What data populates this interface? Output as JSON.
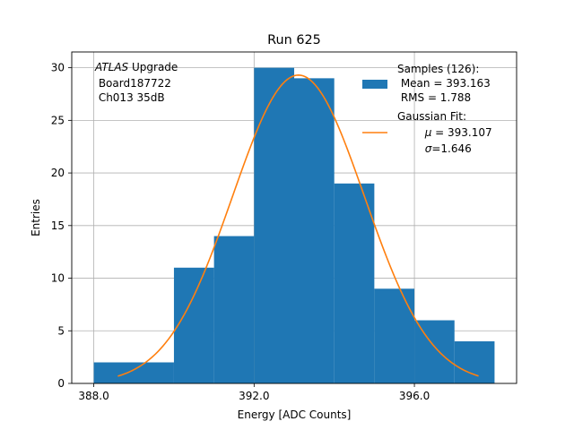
{
  "chart_data": {
    "type": "bar",
    "title": "Run 625",
    "xlabel": "Energy [ADC Counts]",
    "ylabel": "Entries",
    "xlim": [
      387.45,
      398.55
    ],
    "ylim": [
      0,
      31.5
    ],
    "xticks": [
      388,
      392,
      396
    ],
    "xtick_labels": [
      "388.0",
      "392.0",
      "396.0"
    ],
    "yticks": [
      0,
      5,
      10,
      15,
      20,
      25,
      30
    ],
    "ytick_labels": [
      "0",
      "5",
      "10",
      "15",
      "20",
      "25",
      "30"
    ],
    "grid": true,
    "bar_color": "#1f77b4",
    "fit_color": "#ff7f0e",
    "bins": [
      {
        "x0": 388,
        "x1": 390,
        "value": 2
      },
      {
        "x0": 390,
        "x1": 391,
        "value": 11
      },
      {
        "x0": 391,
        "x1": 392,
        "value": 14
      },
      {
        "x0": 392,
        "x1": 393,
        "value": 30
      },
      {
        "x0": 393,
        "x1": 394,
        "value": 29
      },
      {
        "x0": 394,
        "x1": 395,
        "value": 19
      },
      {
        "x0": 395,
        "x1": 396,
        "value": 9
      },
      {
        "x0": 396,
        "x1": 397,
        "value": 6
      },
      {
        "x0": 397,
        "x1": 398,
        "value": 4
      }
    ],
    "fit": {
      "type": "gaussian",
      "mu": 393.107,
      "sigma": 1.646,
      "amplitude": 29.3,
      "range": [
        388.6,
        397.6
      ]
    },
    "annotation": {
      "line1_italic": "ATLAS",
      "line1_rest": " Upgrade",
      "line2": " Board187722",
      "line3": " Ch013 35dB"
    },
    "legend": {
      "placement": "top-right",
      "samples_line1": "Samples (126):",
      "samples_line2": " Mean = 393.163",
      "samples_line3": " RMS = 1.788",
      "fit_line1": "Gaussian Fit:",
      "fit_line2_symbol": "μ",
      "fit_line2_rest": " = 393.107",
      "fit_line3_symbol": "σ",
      "fit_line3_rest": "=1.646"
    }
  }
}
